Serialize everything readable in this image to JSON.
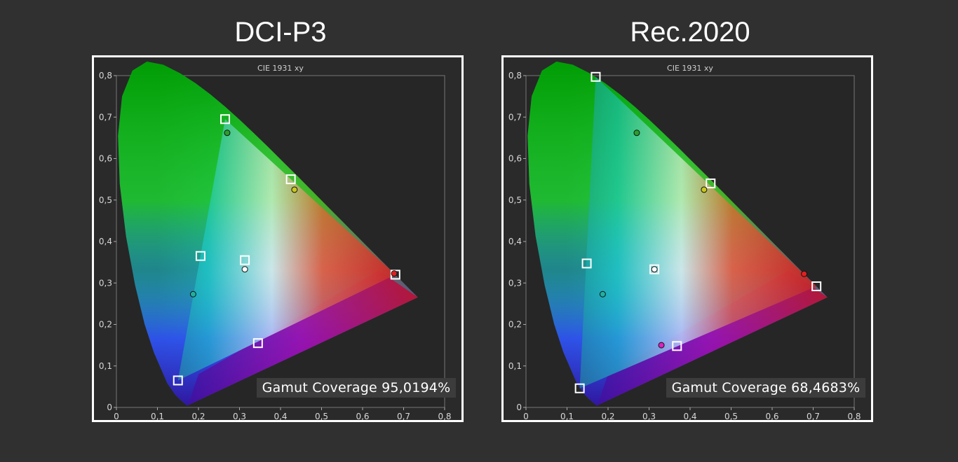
{
  "chart_data": [
    {
      "type": "scatter",
      "title": "DCI-P3",
      "subtitle": "CIE 1931 xy",
      "xlim": [
        0,
        0.8
      ],
      "ylim": [
        0,
        0.8
      ],
      "xticks": [
        "0",
        "0,1",
        "0,2",
        "0,3",
        "0,4",
        "0,5",
        "0,6",
        "0,7",
        "0,8"
      ],
      "yticks": [
        "0",
        "0,1",
        "0,2",
        "0,3",
        "0,4",
        "0,5",
        "0,6",
        "0,7",
        "0,8"
      ],
      "grid": false,
      "target_points": [
        {
          "x": 0.265,
          "y": 0.695
        },
        {
          "x": 0.425,
          "y": 0.55
        },
        {
          "x": 0.68,
          "y": 0.32
        },
        {
          "x": 0.345,
          "y": 0.155
        },
        {
          "x": 0.15,
          "y": 0.065
        },
        {
          "x": 0.205,
          "y": 0.365
        },
        {
          "x": 0.313,
          "y": 0.355
        }
      ],
      "measured_points": [
        {
          "x": 0.27,
          "y": 0.662,
          "color": "#2aa02a"
        },
        {
          "x": 0.434,
          "y": 0.525,
          "color": "#c8c820"
        },
        {
          "x": 0.677,
          "y": 0.323,
          "color": "#e02020"
        },
        {
          "x": 0.187,
          "y": 0.273,
          "color": "#20b0a0"
        },
        {
          "x": 0.313,
          "y": 0.333,
          "color": "#ffffff"
        }
      ],
      "gamut_coverage": "Gamut Coverage 95,0194%"
    },
    {
      "type": "scatter",
      "title": "Rec.2020",
      "subtitle": "CIE 1931 xy",
      "xlim": [
        0,
        0.8
      ],
      "ylim": [
        0,
        0.8
      ],
      "xticks": [
        "0",
        "0,1",
        "0,2",
        "0,3",
        "0,4",
        "0,5",
        "0,6",
        "0,7",
        "0,8"
      ],
      "yticks": [
        "0",
        "0,1",
        "0,2",
        "0,3",
        "0,4",
        "0,5",
        "0,6",
        "0,7",
        "0,8"
      ],
      "grid": false,
      "target_points": [
        {
          "x": 0.17,
          "y": 0.797
        },
        {
          "x": 0.45,
          "y": 0.54
        },
        {
          "x": 0.708,
          "y": 0.292
        },
        {
          "x": 0.368,
          "y": 0.148
        },
        {
          "x": 0.131,
          "y": 0.046
        },
        {
          "x": 0.148,
          "y": 0.347
        },
        {
          "x": 0.313,
          "y": 0.333
        }
      ],
      "measured_points": [
        {
          "x": 0.27,
          "y": 0.662,
          "color": "#2aa02a"
        },
        {
          "x": 0.434,
          "y": 0.525,
          "color": "#c8c820"
        },
        {
          "x": 0.678,
          "y": 0.322,
          "color": "#e02020"
        },
        {
          "x": 0.33,
          "y": 0.15,
          "color": "#e020c0"
        },
        {
          "x": 0.187,
          "y": 0.273,
          "color": "#20b0a0"
        },
        {
          "x": 0.313,
          "y": 0.333,
          "color": "#ffffff"
        }
      ],
      "gamut_coverage": "Gamut Coverage 68,4683%"
    }
  ]
}
